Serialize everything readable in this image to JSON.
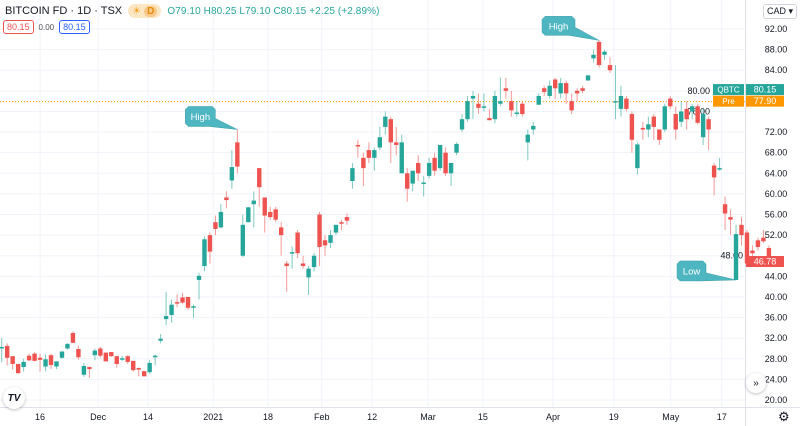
{
  "header": {
    "title": "BITCOIN FD · 1D · TSX",
    "badge_icon": "sun-icon",
    "badge_letter": "D",
    "open": "O79.10",
    "high": "H80.25",
    "low": "L79.10",
    "close": "C80.15",
    "change": "+2.25 (+2.89%)",
    "sell_price": "80.15",
    "spread": "0.00",
    "buy_price": "80.15"
  },
  "currency": "CAD ▾",
  "scroll_label": "»",
  "logo": "TV",
  "colors": {
    "up": "#26a69a",
    "down": "#ef5350",
    "pre": "#ff9800",
    "callout": "#4db6c1"
  },
  "chart_data": {
    "type": "candlestick",
    "title": "BITCOIN FD · 1D · TSX",
    "ylim": [
      18,
      96
    ],
    "yticks": [
      20,
      24,
      28,
      32,
      36,
      40,
      44,
      48,
      52,
      56,
      60,
      64,
      68,
      72,
      76,
      80,
      84,
      88,
      92
    ],
    "xticks": [
      {
        "label": "16",
        "i": 7
      },
      {
        "label": "Dec",
        "i": 17.6
      },
      {
        "label": "14",
        "i": 26.7
      },
      {
        "label": "2021",
        "i": 38.6
      },
      {
        "label": "18",
        "i": 48.6
      },
      {
        "label": "Feb",
        "i": 58.4
      },
      {
        "label": "12",
        "i": 67.6
      },
      {
        "label": "Mar",
        "i": 77.8
      },
      {
        "label": "15",
        "i": 87.8
      },
      {
        "label": "Apr",
        "i": 100.6
      },
      {
        "label": "19",
        "i": 111.7
      },
      {
        "label": "May",
        "i": 122.1
      },
      {
        "label": "17",
        "i": 131.4
      }
    ],
    "candles_ohlc": [
      [
        30,
        32,
        27.3,
        30.3
      ],
      [
        30.5,
        31,
        26.7,
        28.2
      ],
      [
        28.5,
        28.5,
        25.9,
        27
      ],
      [
        27,
        27,
        25.2,
        25.2
      ],
      [
        26.4,
        28,
        25.5,
        27.4
      ],
      [
        28.6,
        29,
        27.5,
        27.7
      ],
      [
        29,
        29.3,
        27.5,
        27.6
      ],
      [
        28.2,
        29,
        25.5,
        27.8
      ],
      [
        26.5,
        28.8,
        25.6,
        27.9
      ],
      [
        28.7,
        29,
        26,
        26.8
      ],
      [
        26.5,
        27.5,
        26,
        27.5
      ],
      [
        28.2,
        29.5,
        28,
        29.4
      ],
      [
        30,
        31,
        29.8,
        30.9
      ],
      [
        33,
        33.3,
        31,
        31.1
      ],
      [
        29.9,
        30.5,
        27.8,
        28.3
      ],
      [
        24.9,
        27.2,
        24.5,
        26.6
      ],
      [
        26.4,
        26.5,
        24.3,
        26
      ],
      [
        28.7,
        30,
        27.7,
        29.6
      ],
      [
        30,
        30.3,
        28.2,
        28.6
      ],
      [
        29.2,
        29.2,
        27.5,
        27.5
      ],
      [
        29.3,
        29.3,
        28.4,
        28.5
      ],
      [
        28.5,
        28.6,
        26.3,
        27
      ],
      [
        28,
        28.6,
        27.6,
        28.1
      ],
      [
        28.5,
        28.7,
        27,
        27.4
      ],
      [
        27.6,
        27.6,
        25.5,
        25.8
      ],
      [
        26.2,
        26.3,
        24.6,
        25.9
      ],
      [
        25.6,
        25.6,
        24.6,
        24.6
      ],
      [
        25.4,
        27.8,
        25.1,
        27.2
      ],
      [
        28.5,
        28.8,
        26.7,
        28.6
      ],
      [
        31.5,
        32.8,
        31,
        31.9
      ],
      [
        35.7,
        41,
        34.5,
        36.3
      ],
      [
        36.5,
        39.5,
        35,
        38.5
      ],
      [
        39,
        40.5,
        38,
        38.8
      ],
      [
        39.9,
        40.8,
        38.6,
        38.9
      ],
      [
        40,
        40,
        37.5,
        37.9
      ],
      [
        38,
        38.5,
        36,
        38.2
      ],
      [
        43.3,
        44.7,
        39.5,
        44.1
      ],
      [
        46,
        51.8,
        45,
        51.2
      ],
      [
        52,
        52.5,
        46.5,
        48.8
      ],
      [
        54.5,
        55.8,
        52,
        53.2
      ],
      [
        53.5,
        58,
        53.3,
        56.5
      ],
      [
        59.3,
        60.5,
        57.2,
        58.8
      ],
      [
        62.6,
        68.5,
        61,
        65.2
      ],
      [
        70,
        72.5,
        64,
        65.3
      ],
      [
        48,
        56,
        47.7,
        54
      ],
      [
        54.5,
        57.5,
        54.5,
        57.4
      ],
      [
        58,
        60.5,
        53.5,
        58.7
      ],
      [
        65,
        65,
        57.5,
        61.3
      ],
      [
        59.3,
        59.3,
        52.5,
        55.8
      ],
      [
        56.5,
        57.5,
        55,
        55.5
      ],
      [
        57,
        57.5,
        54.5,
        55
      ],
      [
        53.5,
        54.5,
        48,
        52
      ],
      [
        46.5,
        47,
        41,
        46
      ],
      [
        48.5,
        49.8,
        45.5,
        48.7
      ],
      [
        52.5,
        53,
        47.5,
        48.5
      ],
      [
        46.5,
        48,
        45.5,
        46
      ],
      [
        43.8,
        46,
        40.4,
        45.5
      ],
      [
        45.8,
        48.5,
        45,
        48
      ],
      [
        56,
        56.5,
        46,
        49.7
      ],
      [
        51,
        52,
        48,
        50
      ],
      [
        50.5,
        53,
        49.5,
        52
      ],
      [
        52.5,
        54,
        52,
        54
      ],
      [
        54.5,
        55,
        53,
        54.3
      ],
      [
        55.5,
        56.2,
        54,
        54.8
      ],
      [
        62.5,
        66,
        61,
        65
      ],
      [
        69.5,
        70.5,
        67,
        69.2
      ],
      [
        67,
        68,
        61.5,
        65
      ],
      [
        68.5,
        70,
        66,
        67
      ],
      [
        67,
        69,
        64.5,
        68.5
      ],
      [
        69,
        73,
        68.5,
        71
      ],
      [
        73,
        76,
        71.5,
        75
      ],
      [
        74.5,
        75,
        66,
        70
      ],
      [
        70,
        73,
        67.5,
        69.5
      ],
      [
        64,
        71.5,
        64,
        70
      ],
      [
        64,
        65,
        58.5,
        61
      ],
      [
        62,
        64,
        60.5,
        64.5
      ],
      [
        66,
        67.5,
        62.5,
        64
      ],
      [
        62,
        63.5,
        59.5,
        62.2
      ],
      [
        63.5,
        67,
        63,
        66
      ],
      [
        67,
        68,
        63.5,
        64.5
      ],
      [
        65,
        69,
        64.5,
        69.5
      ],
      [
        68,
        69,
        63.5,
        64
      ],
      [
        64,
        65,
        61.5,
        66
      ],
      [
        68,
        70,
        67.5,
        69.7
      ],
      [
        72.5,
        75.5,
        72,
        74.5
      ],
      [
        74.5,
        79,
        74,
        78
      ],
      [
        78.5,
        80,
        74.5,
        79
      ],
      [
        77.5,
        79.5,
        75.5,
        76.7
      ],
      [
        77,
        79.5,
        76,
        77
      ],
      [
        74.7,
        76.5,
        74.3,
        74.3
      ],
      [
        74.5,
        80,
        73.7,
        79
      ],
      [
        77.5,
        82.6,
        77,
        78
      ],
      [
        80.5,
        82.5,
        78.5,
        80
      ],
      [
        78,
        80,
        75,
        76.2
      ],
      [
        75.5,
        78,
        75,
        75.8
      ],
      [
        77.5,
        78,
        75,
        75.5
      ],
      [
        70,
        72.5,
        66.5,
        71.5
      ],
      [
        72.5,
        74,
        71.5,
        73.2
      ],
      [
        77.3,
        79.5,
        77.3,
        79
      ],
      [
        80.5,
        81,
        79,
        79.8
      ],
      [
        79,
        82,
        78.5,
        81
      ],
      [
        82.2,
        82.5,
        78.5,
        80.5
      ],
      [
        79.5,
        82.5,
        78.5,
        81.5
      ],
      [
        81.5,
        82,
        77.5,
        79.5
      ],
      [
        78,
        79.5,
        75.5,
        76.2
      ],
      [
        80,
        80.5,
        78,
        79.5
      ],
      [
        80.5,
        81,
        79.5,
        80
      ],
      [
        82,
        83,
        82,
        83
      ],
      [
        86.3,
        88,
        85.5,
        87
      ],
      [
        89.5,
        89.8,
        84.5,
        85
      ],
      [
        87,
        88,
        86,
        87.6
      ],
      [
        85,
        86.5,
        83.5,
        84
      ],
      [
        78,
        85,
        74.5,
        78
      ],
      [
        76.5,
        81,
        75,
        79
      ],
      [
        78.5,
        79,
        76,
        76.5
      ],
      [
        75.5,
        76,
        68,
        70.5
      ],
      [
        65,
        70,
        63.8,
        69.6
      ],
      [
        72.8,
        74,
        70.5,
        72.5
      ],
      [
        72.5,
        75,
        71,
        73.5
      ],
      [
        75,
        75.5,
        70.5,
        73
      ],
      [
        72.5,
        72.5,
        69.5,
        70.5
      ],
      [
        72.5,
        77.5,
        72,
        77
      ],
      [
        78.5,
        79,
        76.5,
        77
      ],
      [
        75.5,
        77,
        70.5,
        72.5
      ],
      [
        74,
        78,
        73,
        76
      ],
      [
        76.5,
        78,
        72.5,
        74.5
      ],
      [
        76,
        77.5,
        74.5,
        77
      ],
      [
        77,
        77.5,
        73.5,
        73.8
      ],
      [
        71,
        76.5,
        69.5,
        75.5
      ],
      [
        74.5,
        75,
        68.5,
        72.5
      ],
      [
        65.5,
        66,
        59.7,
        63.2
      ],
      [
        64.8,
        67,
        64.5,
        65
      ],
      [
        58,
        59.5,
        53,
        56.2
      ],
      [
        55.5,
        57,
        52,
        55
      ],
      [
        43.3,
        54,
        43.3,
        52.2
      ],
      [
        54,
        55.5,
        50,
        52
      ],
      [
        52.5,
        53,
        46,
        46.5
      ],
      [
        49,
        50,
        47,
        48.5
      ],
      [
        51,
        51.5,
        49,
        49.7
      ],
      [
        51.5,
        53,
        50.5,
        50.8
      ],
      [
        49.5,
        50,
        46.3,
        46.78
      ]
    ],
    "annotations": [
      {
        "label": "High",
        "i": 43,
        "price": 72.5
      },
      {
        "label": "High",
        "i": 109,
        "price": 89.8
      },
      {
        "label": "Low",
        "i": 134,
        "price": 43.3
      }
    ],
    "price_labels": [
      {
        "symbol": "QBTC",
        "value": "80.15",
        "price": 80.15,
        "color": "#26a69a"
      },
      {
        "symbol": "Pre",
        "value": "77.90",
        "price": 77.9,
        "color": "#ff9800"
      },
      {
        "symbol": "",
        "value": "46.78",
        "price": 46.78,
        "color": "#ef5350"
      }
    ]
  }
}
